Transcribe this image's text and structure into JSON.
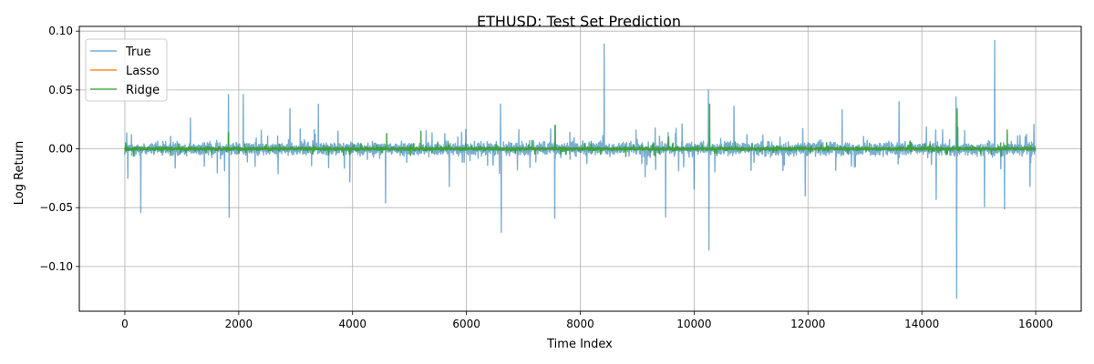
{
  "chart_data": {
    "type": "line",
    "title": "ETHUSD: Test Set Prediction",
    "xlabel": "Time Index",
    "ylabel": "Log Return",
    "xlim": [
      -800,
      16800
    ],
    "ylim": [
      -0.138,
      0.104
    ],
    "x_ticks": [
      0,
      2000,
      4000,
      6000,
      8000,
      10000,
      12000,
      14000,
      16000
    ],
    "x_tick_labels": [
      "0",
      "2000",
      "4000",
      "6000",
      "8000",
      "10000",
      "12000",
      "14000",
      "16000"
    ],
    "y_ticks": [
      0.1,
      0.05,
      0.0,
      -0.05,
      -0.1
    ],
    "y_tick_labels": [
      "0.10",
      "0.05",
      "0.00",
      "−0.05",
      "−0.10"
    ],
    "grid": true,
    "legend_position": "top-left",
    "x_count": 16000,
    "series": [
      {
        "name": "True",
        "color": "#1f77b4",
        "opacity": 0.6,
        "noise_amplitude": 0.008,
        "spikes": [
          {
            "x": 50,
            "y": -0.025
          },
          {
            "x": 280,
            "y": -0.054
          },
          {
            "x": 1150,
            "y": 0.026
          },
          {
            "x": 1820,
            "y": 0.046
          },
          {
            "x": 1830,
            "y": -0.058
          },
          {
            "x": 2080,
            "y": 0.046
          },
          {
            "x": 2900,
            "y": 0.034
          },
          {
            "x": 3400,
            "y": 0.038
          },
          {
            "x": 3950,
            "y": -0.028
          },
          {
            "x": 4580,
            "y": -0.046
          },
          {
            "x": 5700,
            "y": -0.032
          },
          {
            "x": 6600,
            "y": 0.038
          },
          {
            "x": 6610,
            "y": -0.071
          },
          {
            "x": 7550,
            "y": -0.059
          },
          {
            "x": 8420,
            "y": 0.089
          },
          {
            "x": 9500,
            "y": -0.058
          },
          {
            "x": 10000,
            "y": -0.034
          },
          {
            "x": 10250,
            "y": 0.05
          },
          {
            "x": 10260,
            "y": -0.086
          },
          {
            "x": 10700,
            "y": 0.036
          },
          {
            "x": 11950,
            "y": -0.04
          },
          {
            "x": 12600,
            "y": 0.033
          },
          {
            "x": 13600,
            "y": 0.04
          },
          {
            "x": 14250,
            "y": -0.043
          },
          {
            "x": 14600,
            "y": 0.044
          },
          {
            "x": 14610,
            "y": -0.127
          },
          {
            "x": 15100,
            "y": -0.049
          },
          {
            "x": 15280,
            "y": 0.092
          },
          {
            "x": 15450,
            "y": -0.051
          },
          {
            "x": 15900,
            "y": -0.032
          }
        ]
      },
      {
        "name": "Lasso",
        "color": "#ff7f0e",
        "opacity": 0.9,
        "constant": 0.0
      },
      {
        "name": "Ridge",
        "color": "#2ca02c",
        "opacity": 0.85,
        "noise_amplitude": 0.0022,
        "spikes": [
          {
            "x": 1820,
            "y": 0.014
          },
          {
            "x": 4600,
            "y": 0.013
          },
          {
            "x": 5200,
            "y": 0.015
          },
          {
            "x": 7560,
            "y": 0.02
          },
          {
            "x": 9550,
            "y": 0.01
          },
          {
            "x": 10270,
            "y": 0.038
          },
          {
            "x": 14620,
            "y": 0.034
          },
          {
            "x": 15500,
            "y": 0.016
          }
        ]
      }
    ]
  }
}
